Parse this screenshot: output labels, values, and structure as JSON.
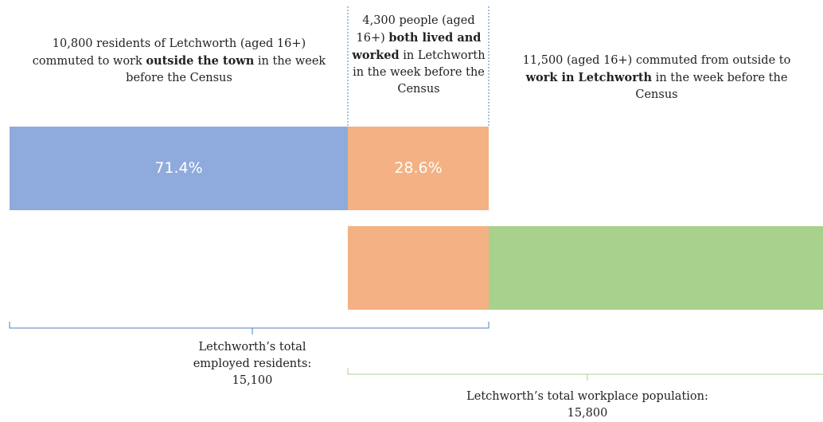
{
  "residents_out": {
    "parts": [
      "10,800 residents of Letchworth (aged 16+) commuted to work ",
      "outside the town",
      " in the week before the Census"
    ]
  },
  "both": {
    "parts": [
      "4,300 people (aged 16+) ",
      "both lived and worked",
      " in Letchworth in the week before the Census"
    ]
  },
  "commuters_in": {
    "parts": [
      "11,500 (aged 16+) commuted from outside to ",
      "work in Letchworth",
      " in the week before the Census"
    ]
  },
  "bars": {
    "outside_share": "71.4%",
    "both_share": "28.6%"
  },
  "employed_residents": {
    "label": "Letchworth’s total employed residents:",
    "value": "15,100"
  },
  "workplace_population": {
    "label": "Letchworth’s total workplace population:",
    "value": "15,800"
  }
}
